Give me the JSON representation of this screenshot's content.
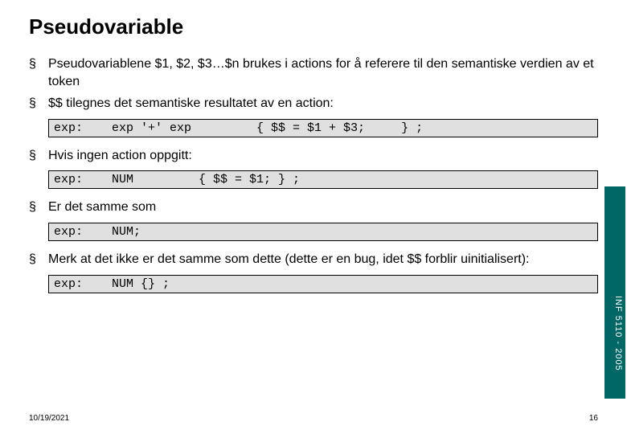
{
  "title": "Pseudovariable",
  "bullets": {
    "b1": "Pseudovariablene $1, $2, $3…$n brukes i actions for å referere til den semantiske verdien av et token",
    "b2": "$$ tilegnes det semantiske resultatet av en action:",
    "b3": "Hvis ingen action oppgitt:",
    "b4": "Er det samme som",
    "b5": "Merk at det ikke er det samme som dette (dette er en bug, idet $$ forblir uinitialisert):"
  },
  "code": {
    "c1": "exp:    exp '+' exp         { $$ = $1 + $3;     } ;",
    "c2": "exp:    NUM         { $$ = $1; } ;",
    "c3": "exp:    NUM;",
    "c4": "exp:    NUM {} ;"
  },
  "sidebar": "INF 5110 - 2005",
  "footer": {
    "date": "10/19/2021",
    "page": "16"
  },
  "colors": {
    "sidebar_bg": "#006666",
    "code_bg": "#e0e0e0"
  }
}
